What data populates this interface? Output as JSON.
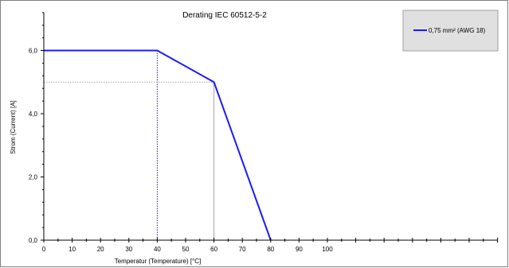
{
  "chart_data": {
    "type": "line",
    "title": "Derating IEC 60512-5-2",
    "xlabel": "Temperatur (Temperature) [°C]",
    "ylabel": "Strom (Current) [A]",
    "xlim": [
      0,
      160
    ],
    "ylim": [
      0,
      7.2
    ],
    "x_ticks": [
      0,
      10,
      20,
      30,
      40,
      50,
      60,
      70,
      80,
      90,
      100
    ],
    "y_ticks": [
      0,
      2,
      4,
      6
    ],
    "y_tick_labels": [
      "0,0",
      "2,0",
      "4,0",
      "6,0"
    ],
    "series": [
      {
        "name": "0,75 mm² (AWG 18)",
        "color": "#1a1aff",
        "x": [
          0,
          40,
          60,
          80
        ],
        "y": [
          6.0,
          6.0,
          5.0,
          0.0
        ]
      }
    ],
    "reference_lines": [
      {
        "kind": "vertical",
        "x": 40,
        "y_from": 0,
        "y_to": 6.0,
        "color": "#1a1aff",
        "style": "dotted"
      },
      {
        "kind": "vertical",
        "x": 60,
        "y_from": 0,
        "y_to": 5.0,
        "color": "#a6a6a6",
        "style": "solid"
      },
      {
        "kind": "horizontal",
        "y": 5.0,
        "x_from": 0,
        "x_to": 60,
        "color": "#a6a6a6",
        "style": "dotted"
      }
    ],
    "legend_position": "top-right",
    "grid": false
  }
}
